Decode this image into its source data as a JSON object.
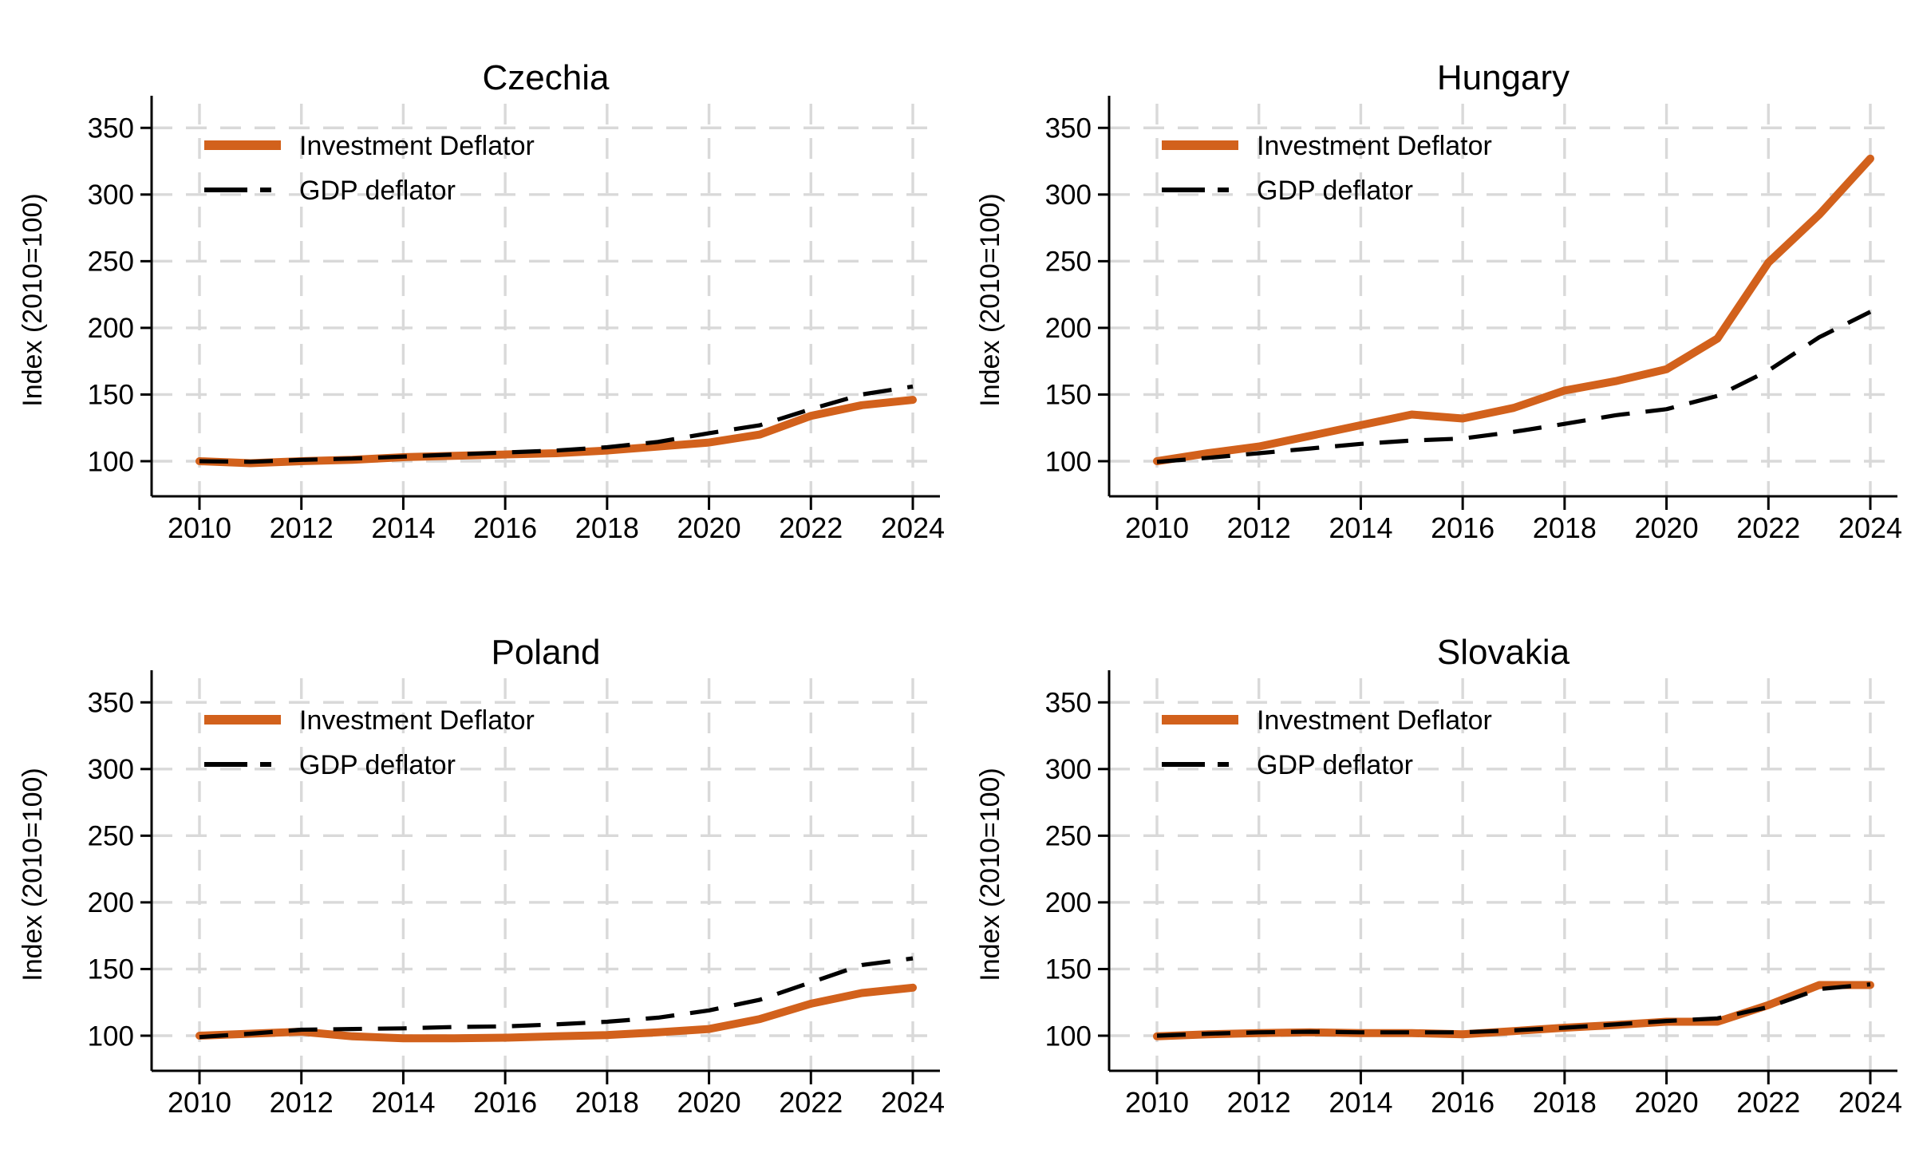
{
  "figure": {
    "background": "#FFFFFF",
    "ylabel": "Index (2010=100)",
    "legend": [
      "Investment Deflator",
      "GDP deflator"
    ],
    "colors": {
      "investment_line": "#D2611C",
      "gdp_line": "#000000",
      "grid": "#D9D9D9",
      "axis": "#000000",
      "text": "#000000"
    }
  },
  "chart_data": [
    {
      "type": "line",
      "title": "Czechia",
      "x": [
        2010,
        2011,
        2012,
        2013,
        2014,
        2015,
        2016,
        2017,
        2018,
        2019,
        2020,
        2021,
        2022,
        2023,
        2024
      ],
      "xticks": [
        2010,
        2012,
        2014,
        2016,
        2018,
        2020,
        2022,
        2024
      ],
      "yticks": [
        100,
        150,
        200,
        250,
        300,
        350
      ],
      "ylim": [
        75,
        368
      ],
      "grid": true,
      "legend_position": "top-left",
      "ylabel": "Index (2010=100)",
      "xlabel": "",
      "series": [
        {
          "name": "Investment Deflator",
          "values": [
            100,
            98.5,
            100,
            101,
            103,
            104,
            105,
            106,
            108,
            111,
            114,
            120,
            134,
            142,
            146
          ]
        },
        {
          "name": "GDP deflator",
          "values": [
            100,
            99.5,
            101,
            102,
            103.5,
            105,
            106.5,
            108,
            110.5,
            114.5,
            121,
            127,
            139,
            150,
            156
          ]
        }
      ]
    },
    {
      "type": "line",
      "title": "Hungary",
      "x": [
        2010,
        2011,
        2012,
        2013,
        2014,
        2015,
        2016,
        2017,
        2018,
        2019,
        2020,
        2021,
        2022,
        2023,
        2024
      ],
      "xticks": [
        2010,
        2012,
        2014,
        2016,
        2018,
        2020,
        2022,
        2024
      ],
      "yticks": [
        100,
        150,
        200,
        250,
        300,
        350
      ],
      "ylim": [
        75,
        368
      ],
      "grid": true,
      "legend_position": "top-left",
      "ylabel": "Index (2010=100)",
      "xlabel": "",
      "series": [
        {
          "name": "Investment Deflator",
          "values": [
            100,
            106,
            111,
            119,
            127,
            135,
            132,
            140,
            153,
            160,
            169,
            192,
            249,
            285,
            327
          ]
        },
        {
          "name": "GDP deflator",
          "values": [
            99.5,
            102.5,
            106,
            109.5,
            113,
            115.5,
            117,
            122,
            128,
            134.5,
            139,
            149,
            168,
            193,
            212
          ]
        }
      ]
    },
    {
      "type": "line",
      "title": "Poland",
      "x": [
        2010,
        2011,
        2012,
        2013,
        2014,
        2015,
        2016,
        2017,
        2018,
        2019,
        2020,
        2021,
        2022,
        2023,
        2024
      ],
      "xticks": [
        2010,
        2012,
        2014,
        2016,
        2018,
        2020,
        2022,
        2024
      ],
      "yticks": [
        100,
        150,
        200,
        250,
        300,
        350
      ],
      "ylim": [
        75,
        368
      ],
      "grid": true,
      "legend_position": "top-left",
      "ylabel": "Index (2010=100)",
      "xlabel": "",
      "series": [
        {
          "name": "Investment Deflator",
          "values": [
            100,
            101.5,
            103,
            99.5,
            98,
            98,
            98.5,
            99.5,
            100.5,
            102.5,
            105,
            112.5,
            124,
            132,
            136
          ]
        },
        {
          "name": "GDP deflator",
          "values": [
            99,
            101.5,
            104.5,
            105,
            105.5,
            106.5,
            107,
            108.5,
            110.5,
            113.5,
            119,
            127,
            140,
            153,
            158
          ]
        }
      ]
    },
    {
      "type": "line",
      "title": "Slovakia",
      "x": [
        2010,
        2011,
        2012,
        2013,
        2014,
        2015,
        2016,
        2017,
        2018,
        2019,
        2020,
        2021,
        2022,
        2023,
        2024
      ],
      "xticks": [
        2010,
        2012,
        2014,
        2016,
        2018,
        2020,
        2022,
        2024
      ],
      "yticks": [
        100,
        150,
        200,
        250,
        300,
        350
      ],
      "ylim": [
        75,
        368
      ],
      "grid": true,
      "legend_position": "top-left",
      "ylabel": "Index (2010=100)",
      "xlabel": "",
      "series": [
        {
          "name": "Investment Deflator",
          "values": [
            99.5,
            101,
            102,
            102.5,
            102,
            102,
            101,
            103.5,
            106,
            108,
            110.5,
            110.5,
            123,
            138,
            138
          ]
        },
        {
          "name": "GDP deflator",
          "values": [
            100,
            101.5,
            102.5,
            103,
            102.5,
            102.5,
            102.5,
            104,
            106,
            108.5,
            111,
            113,
            121.5,
            135,
            138.5
          ]
        }
      ]
    }
  ]
}
